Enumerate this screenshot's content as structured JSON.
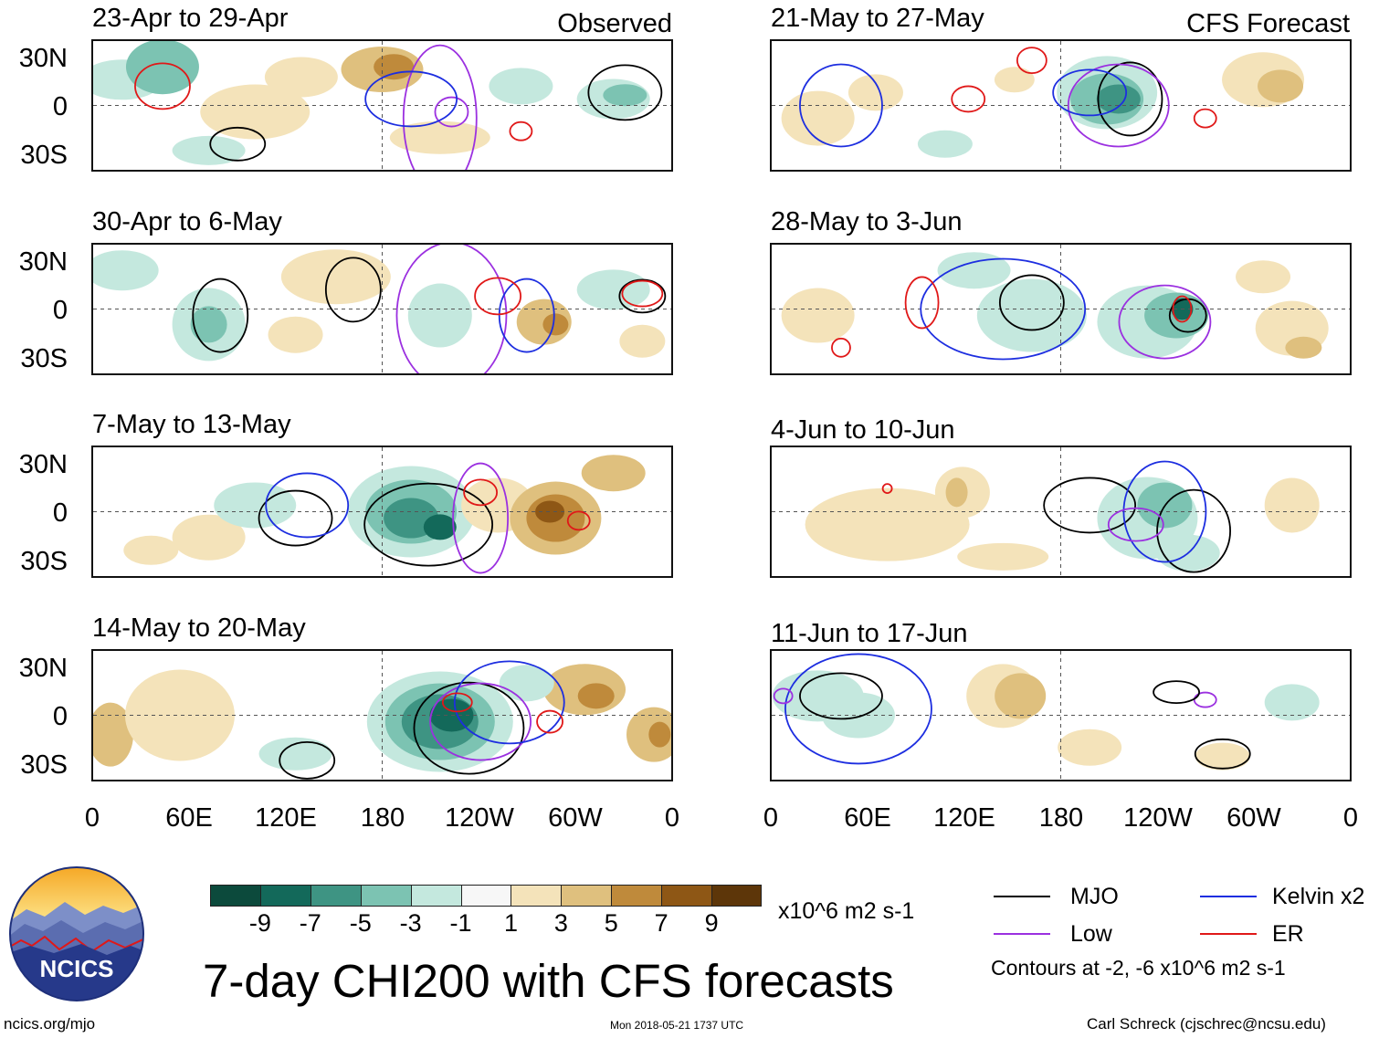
{
  "chart_data": {
    "type": "heatmap",
    "title": "7-day CHI200 with CFS forecasts",
    "variable": "CHI200 anomaly",
    "units": "x10^6 m2 s-1",
    "contour_note": "Contours at -2, -6 x10^6 m2 s-1",
    "latitude_ticks": [
      "30N",
      "0",
      "30S"
    ],
    "longitude_ticks": [
      "0",
      "60E",
      "120E",
      "180",
      "120W",
      "60W",
      "0"
    ],
    "colorbar": {
      "tick_labels": [
        "-9",
        "-7",
        "-5",
        "-3",
        "-1",
        "1",
        "3",
        "5",
        "7",
        "9"
      ],
      "colors": [
        "#0c4a3c",
        "#13695a",
        "#3e9483",
        "#7cc3b2",
        "#c4e8de",
        "#f7f7f7",
        "#f4e3ba",
        "#dfc07e",
        "#bf8a3b",
        "#8e5715",
        "#5d3609"
      ]
    },
    "contour_legend": [
      {
        "label": "MJO",
        "color": "#000000"
      },
      {
        "label": "Kelvin x2",
        "color": "#1d2ee0"
      },
      {
        "label": "Low",
        "color": "#9b30e0"
      },
      {
        "label": "ER",
        "color": "#e01818"
      }
    ],
    "panels": [
      {
        "id": "p1",
        "period": "23-Apr to 29-Apr",
        "label": "Observed"
      },
      {
        "id": "p2",
        "period": "30-Apr to 6-May",
        "label": ""
      },
      {
        "id": "p3",
        "period": "7-May to 13-May",
        "label": ""
      },
      {
        "id": "p4",
        "period": "14-May to 20-May",
        "label": ""
      },
      {
        "id": "p5",
        "period": "21-May to 27-May",
        "label": "CFS Forecast"
      },
      {
        "id": "p6",
        "period": "28-May to 3-Jun",
        "label": ""
      },
      {
        "id": "p7",
        "period": "4-Jun to 10-Jun",
        "label": ""
      },
      {
        "id": "p8",
        "period": "11-Jun to 17-Jun",
        "label": ""
      }
    ]
  },
  "logo": {
    "text": "NCICS"
  },
  "footer": {
    "left": "ncics.org/mjo",
    "center": "Mon 2018-05-21 1737 UTC",
    "right": "Carl Schreck (cjschrec@ncsu.edu)"
  }
}
